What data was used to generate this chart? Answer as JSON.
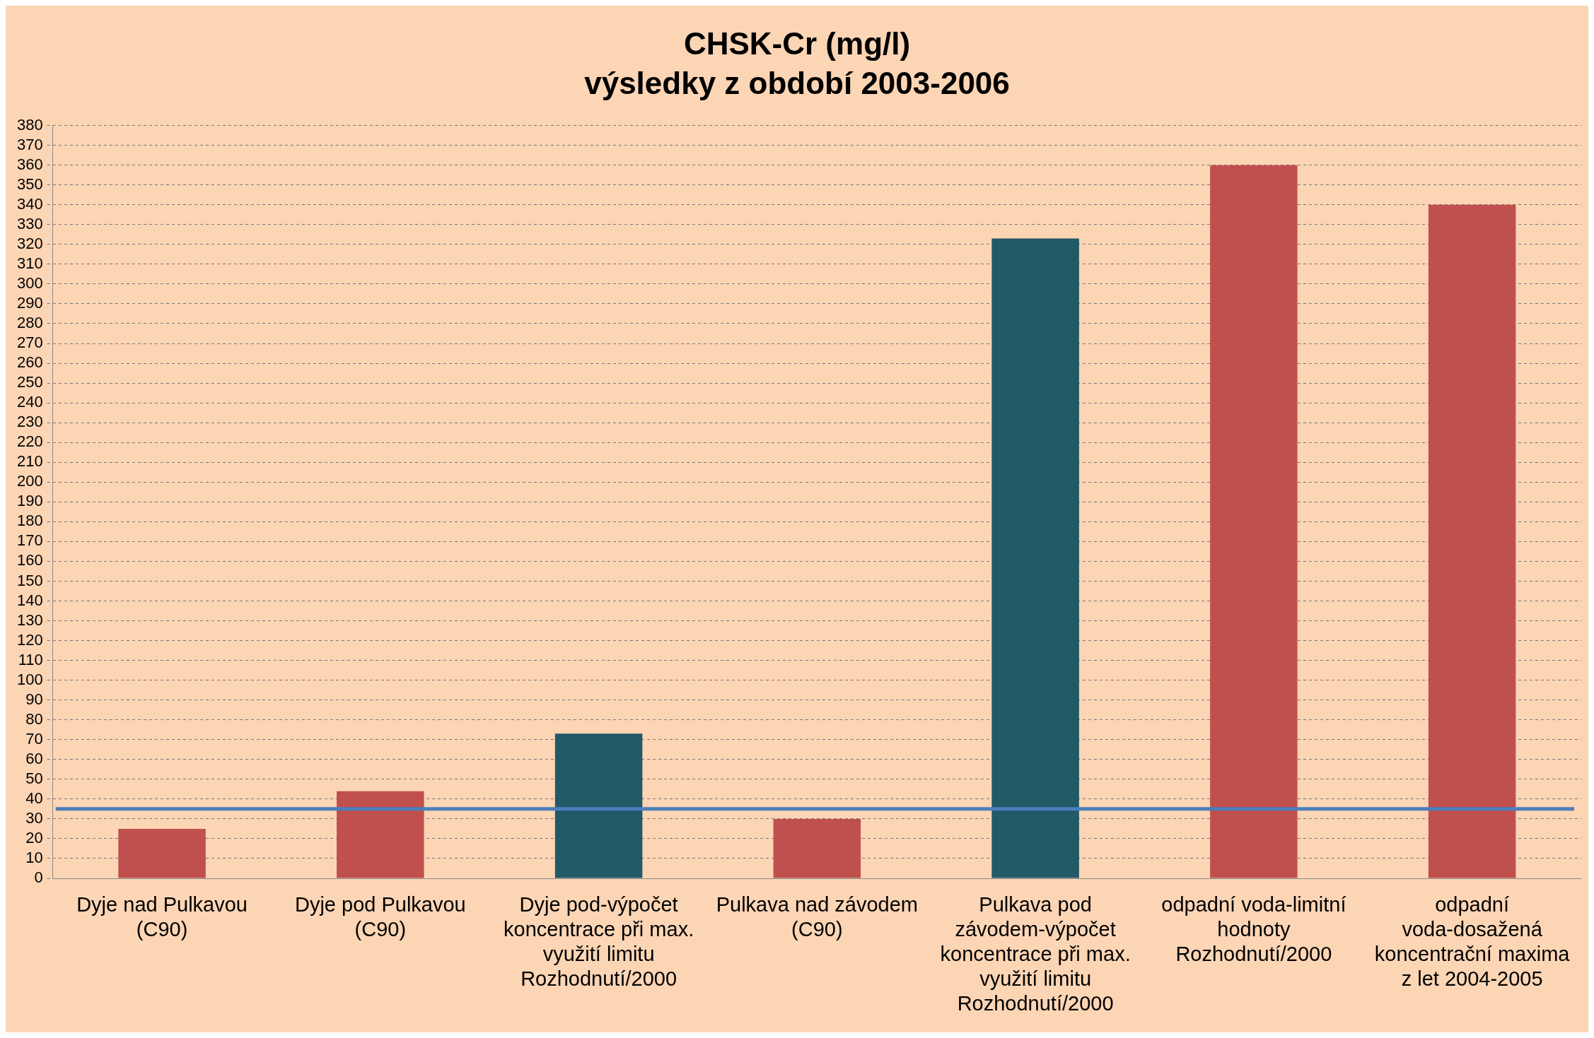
{
  "chart_data": {
    "type": "bar",
    "title": "CHSK-Cr (mg/l)",
    "subtitle": "výsledky z období 2003-2006",
    "categories": [
      "Dyje nad Pulkavou (C90)",
      "Dyje pod Pulkavou (C90)",
      "Dyje pod-výpočet koncentrace při max. využití limitu Rozhodnutí/2000",
      "Pulkava nad závodem (C90)",
      "Pulkava pod závodem-výpočet koncentrace při max. využití limitu Rozhodnutí/2000",
      "odpadní voda-limitní hodnoty Rozhodnutí/2000",
      "odpadní voda-dosažená koncentrační maxima z let 2004-2005"
    ],
    "values": [
      25,
      44,
      73,
      30,
      323,
      360,
      340
    ],
    "colors": [
      "#c0504d",
      "#c0504d",
      "#215967",
      "#c0504d",
      "#215967",
      "#c0504d",
      "#c0504d"
    ],
    "ylim": [
      0,
      380
    ],
    "yticks": [
      0,
      10,
      20,
      30,
      40,
      50,
      60,
      70,
      80,
      90,
      100,
      110,
      120,
      130,
      140,
      150,
      160,
      170,
      180,
      190,
      200,
      210,
      220,
      230,
      240,
      250,
      260,
      270,
      280,
      290,
      300,
      310,
      320,
      330,
      340,
      350,
      360,
      370,
      380
    ],
    "grid": "y",
    "legend": false,
    "ref_lines": [
      {
        "axis": "y",
        "value": 35,
        "color": "#4a7ebb"
      }
    ]
  }
}
